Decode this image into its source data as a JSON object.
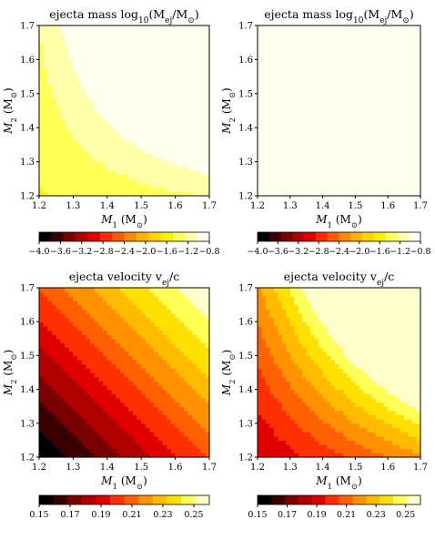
{
  "chart_data": [
    {
      "type": "heatmap",
      "title_prefix": "ejecta mass log",
      "title_sub": "10",
      "title_rest": "(M",
      "title_rest_sub": "ej",
      "title_tail": "/M",
      "title_tail_sub": "⊙",
      "title_close": ")",
      "xlabel": "M",
      "xlabel_sub": "1",
      "xlabel_unit": " (M",
      "xlabel_unit_sub": "⊙",
      "xlabel_close": ")",
      "ylabel": "M",
      "ylabel_sub": "2",
      "ylabel_unit": " (M",
      "ylabel_unit_sub": "⊙",
      "ylabel_close": ")",
      "xlim": [
        1.2,
        1.7
      ],
      "ylim": [
        1.2,
        1.7
      ],
      "xticks": [
        "1.2",
        "1.3",
        "1.4",
        "1.5",
        "1.6",
        "1.7"
      ],
      "yticks": [
        "1.2",
        "1.3",
        "1.4",
        "1.5",
        "1.6",
        "1.7"
      ],
      "model": {
        "kind": "mass",
        "base": -1.5,
        "sum_coef": 0.5,
        "prod_coef": 6.0
      },
      "colorbar": {
        "ticks": [
          "−4.0",
          "−3.6",
          "−3.2",
          "−2.8",
          "−2.4",
          "−2.0",
          "−1.6",
          "−1.2",
          "−0.8"
        ],
        "vmin": -4.0,
        "vmax": -0.8
      }
    },
    {
      "type": "heatmap",
      "title_prefix": "ejecta mass log",
      "title_sub": "10",
      "title_rest": "(M",
      "title_rest_sub": "ej",
      "title_tail": "/M",
      "title_tail_sub": "⊙",
      "title_close": ")",
      "xlabel": "M",
      "xlabel_sub": "1",
      "xlabel_unit": " (M",
      "xlabel_unit_sub": "⊙",
      "xlabel_close": ")",
      "ylabel": "M",
      "ylabel_sub": "2",
      "ylabel_unit": " (M",
      "ylabel_unit_sub": "⊙",
      "ylabel_close": ")",
      "xlim": [
        1.2,
        1.7
      ],
      "ylim": [
        1.2,
        1.7
      ],
      "xticks": [
        "1.2",
        "1.3",
        "1.4",
        "1.5",
        "1.6",
        "1.7"
      ],
      "yticks": [
        "1.2",
        "1.3",
        "1.4",
        "1.5",
        "1.6",
        "1.7"
      ],
      "model": {
        "kind": "mass",
        "base": -0.85,
        "sum_coef": 0.35,
        "prod_coef": 4.0
      },
      "colorbar": {
        "ticks": [
          "−4.0",
          "−3.6",
          "−3.2",
          "−2.8",
          "−2.4",
          "−2.0",
          "−1.6",
          "−1.2",
          "−0.8"
        ],
        "vmin": -4.0,
        "vmax": -0.8
      }
    },
    {
      "type": "heatmap",
      "title_prefix": "ejecta velocity v",
      "title_sub": "ej",
      "title_rest": "/c",
      "title_rest_sub": "",
      "title_tail": "",
      "title_tail_sub": "",
      "title_close": "",
      "xlabel": "M",
      "xlabel_sub": "1",
      "xlabel_unit": " (M",
      "xlabel_unit_sub": "⊙",
      "xlabel_close": ")",
      "ylabel": "M",
      "ylabel_sub": "2",
      "ylabel_unit": " (M",
      "ylabel_unit_sub": "⊙",
      "ylabel_close": ")",
      "xlim": [
        1.2,
        1.7
      ],
      "ylim": [
        1.2,
        1.7
      ],
      "xticks": [
        "1.2",
        "1.3",
        "1.4",
        "1.5",
        "1.6",
        "1.7"
      ],
      "yticks": [
        "1.2",
        "1.3",
        "1.4",
        "1.5",
        "1.6",
        "1.7"
      ],
      "model": {
        "kind": "vel",
        "v0": 0.15,
        "slope": 0.112
      },
      "colorbar": {
        "ticks": [
          "0.15",
          "0.17",
          "0.19",
          "0.21",
          "0.23",
          "0.25"
        ],
        "vmin": 0.15,
        "vmax": 0.26
      }
    },
    {
      "type": "heatmap",
      "title_prefix": "ejecta velocity v",
      "title_sub": "ej",
      "title_rest": "/c",
      "title_rest_sub": "",
      "title_tail": "",
      "title_tail_sub": "",
      "title_close": "",
      "xlabel": "M",
      "xlabel_sub": "1",
      "xlabel_unit": " (M",
      "xlabel_unit_sub": "⊙",
      "xlabel_close": ")",
      "ylabel": "M",
      "ylabel_sub": "2",
      "ylabel_unit": " (M",
      "ylabel_unit_sub": "⊙",
      "ylabel_close": ")",
      "xlim": [
        1.2,
        1.7
      ],
      "ylim": [
        1.2,
        1.7
      ],
      "xticks": [
        "1.2",
        "1.3",
        "1.4",
        "1.5",
        "1.6",
        "1.7"
      ],
      "yticks": [
        "1.2",
        "1.3",
        "1.4",
        "1.5",
        "1.6",
        "1.7"
      ],
      "model": {
        "kind": "vel2",
        "v0": 0.186,
        "coef": 0.3
      },
      "colorbar": {
        "ticks": [
          "0.15",
          "0.17",
          "0.19",
          "0.21",
          "0.23",
          "0.25"
        ],
        "vmin": 0.15,
        "vmax": 0.26
      }
    }
  ],
  "colors": {
    "mass_scale": [
      "#000000",
      "#3a0000",
      "#7a0000",
      "#b00000",
      "#e00000",
      "#ff2a00",
      "#ff5a00",
      "#ff8a00",
      "#ffb000",
      "#ffd400",
      "#fff000",
      "#ffff55",
      "#ffffaa",
      "#ffffee"
    ],
    "vel_scale": [
      "#000000",
      "#3a0000",
      "#7a0000",
      "#b00000",
      "#e00000",
      "#ff3000",
      "#ff6000",
      "#ff9000",
      "#ffbb00",
      "#ffe000",
      "#ffff55",
      "#ffffcc"
    ]
  }
}
